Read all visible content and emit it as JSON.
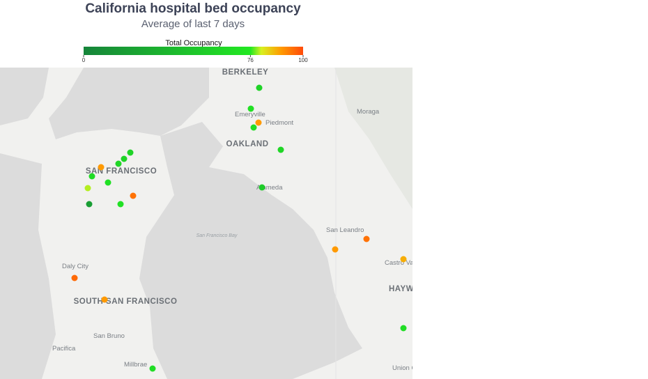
{
  "title": "California hospital bed occupancy",
  "subtitle": "Average of last 7 days",
  "colorbar": {
    "title": "Total Occupancy",
    "range": [
      0,
      100
    ],
    "ticks": [
      0,
      76,
      100
    ],
    "colorscale": [
      [
        0,
        "#16843a"
      ],
      [
        76,
        "#22e822"
      ],
      [
        81,
        "#d8f020"
      ],
      [
        90,
        "#ff9a00"
      ],
      [
        100,
        "#ff4a0a"
      ]
    ]
  },
  "points": {
    "values": [
      60,
      70,
      90,
      68,
      62,
      55,
      60,
      60,
      62,
      90,
      66,
      70,
      80,
      95,
      20,
      70,
      90,
      95,
      88,
      96,
      90,
      68,
      68
    ]
  },
  "places": [
    "BERKELEY",
    "Emeryville",
    "Piedmont",
    "OAKLAND",
    "Moraga",
    "SAN FRANCISCO",
    "Alameda",
    "San Francisco Bay",
    "San Leandro",
    "Daly City",
    "SOUTH SAN FRANCISCO",
    "Castro Valley",
    "HAYWARD",
    "San Bruno",
    "Pacifica",
    "Millbrae",
    "Union City"
  ]
}
